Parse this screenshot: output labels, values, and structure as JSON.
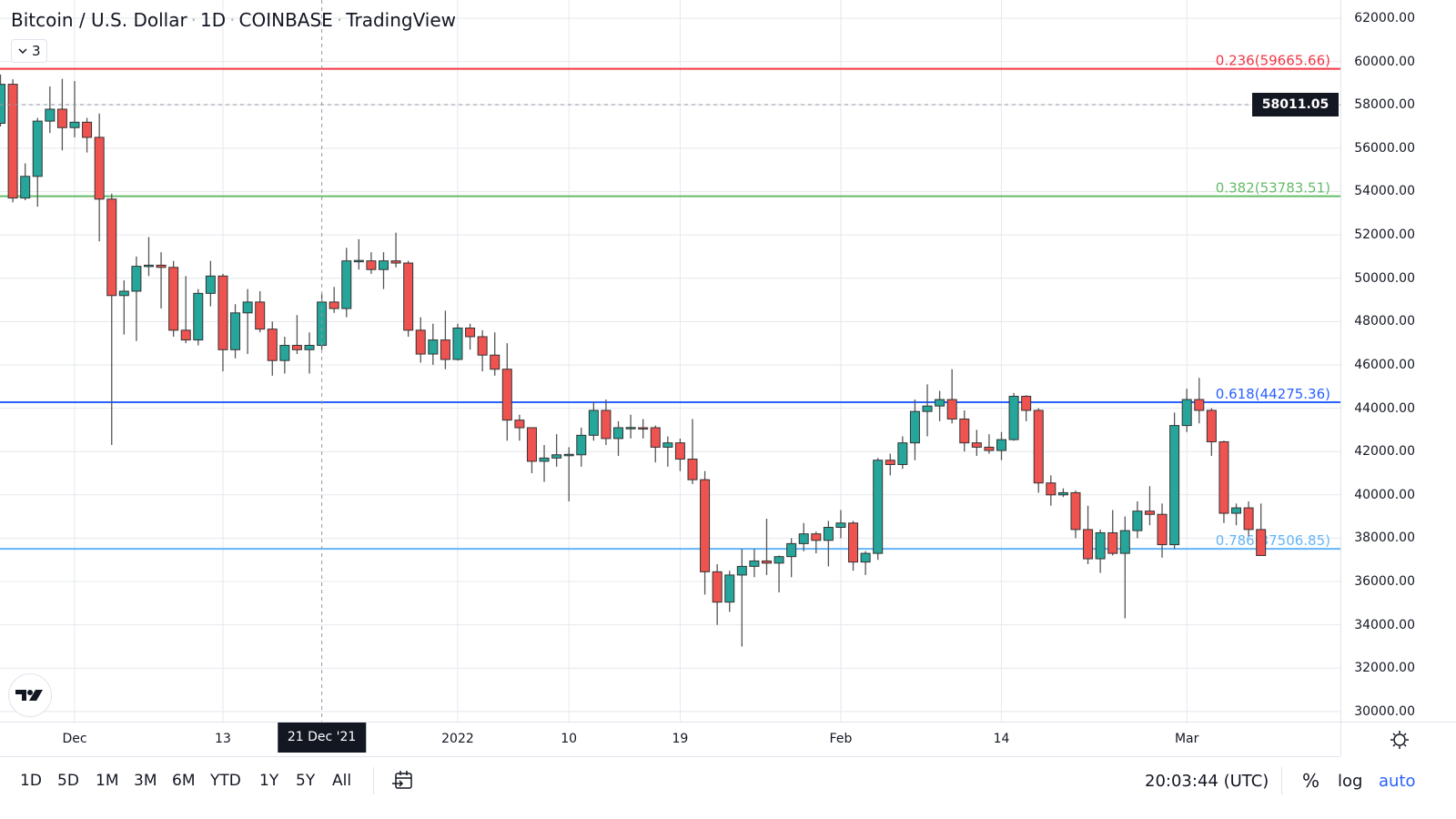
{
  "header": {
    "symbol": "Bitcoin / U.S. Dollar",
    "interval": "1D",
    "exchange": "COINBASE",
    "source": "TradingView",
    "separator": "·",
    "indicator_count": "3"
  },
  "current_price": "58011.05",
  "crosshair_date": "21 Dec '21",
  "bottom": {
    "ranges": [
      "1D",
      "5D",
      "1M",
      "3M",
      "6M",
      "YTD",
      "1Y",
      "5Y",
      "All"
    ],
    "clock": "20:03:44 (UTC)",
    "percent": "%",
    "log": "log",
    "auto": "auto"
  },
  "colors": {
    "up": "#26a69a",
    "down": "#ef5350",
    "accent": "#2962ff"
  },
  "chart_data": {
    "type": "candlestick",
    "title": "Bitcoin / U.S. Dollar · 1D · COINBASE",
    "ylim": [
      29500,
      62800
    ],
    "grid": true,
    "price_ticks": [
      "62000.00",
      "60000.00",
      "58000.00",
      "56000.00",
      "54000.00",
      "52000.00",
      "50000.00",
      "48000.00",
      "46000.00",
      "44000.00",
      "42000.00",
      "40000.00",
      "38000.00",
      "36000.00",
      "34000.00",
      "32000.00",
      "30000.00"
    ],
    "time_ticks": [
      {
        "date": "2021-12-01",
        "label": "Dec"
      },
      {
        "date": "2021-12-13",
        "label": "13"
      },
      {
        "date": "2022-01-01",
        "label": "2022"
      },
      {
        "date": "2022-01-10",
        "label": "10"
      },
      {
        "date": "2022-01-19",
        "label": "19"
      },
      {
        "date": "2022-02-01",
        "label": "Feb"
      },
      {
        "date": "2022-02-14",
        "label": "14"
      },
      {
        "date": "2022-03-01",
        "label": "Mar"
      }
    ],
    "crosshair": {
      "date": "2021-12-21",
      "price": 58011.05
    },
    "fib_levels": [
      {
        "ratio": "0.236",
        "price": 59665.66,
        "label": "0.236(59665.66)",
        "color": "#f23645"
      },
      {
        "ratio": "0.382",
        "price": 53783.51,
        "label": "0.382(53783.51)",
        "color": "#66bb6a"
      },
      {
        "ratio": "0.618",
        "price": 44275.36,
        "label": "0.618(44275.36)",
        "color": "#2962ff"
      },
      {
        "ratio": "0.786",
        "price": 37506.85,
        "label": "0.786(37506.85)",
        "color": "#64b5f6"
      }
    ],
    "columns": [
      "date",
      "open",
      "high",
      "low",
      "close"
    ],
    "candles": [
      [
        "2021-11-25",
        57150,
        59400,
        57000,
        58950
      ],
      [
        "2021-11-26",
        58950,
        59180,
        53500,
        53700
      ],
      [
        "2021-11-27",
        53700,
        55300,
        53600,
        54700
      ],
      [
        "2021-11-28",
        54700,
        57400,
        53300,
        57250
      ],
      [
        "2021-11-29",
        57250,
        58850,
        56700,
        57800
      ],
      [
        "2021-11-30",
        57800,
        59200,
        55900,
        56950
      ],
      [
        "2021-12-01",
        56950,
        59100,
        56500,
        57200
      ],
      [
        "2021-12-02",
        57200,
        57400,
        55800,
        56500
      ],
      [
        "2021-12-03",
        56500,
        57600,
        51700,
        53650
      ],
      [
        "2021-12-04",
        53650,
        53900,
        42300,
        49200
      ],
      [
        "2021-12-05",
        49200,
        49900,
        47400,
        49400
      ],
      [
        "2021-12-06",
        49400,
        51000,
        47100,
        50550
      ],
      [
        "2021-12-07",
        50550,
        51900,
        50100,
        50600
      ],
      [
        "2021-12-08",
        50600,
        51200,
        48600,
        50500
      ],
      [
        "2021-12-09",
        50500,
        50800,
        47300,
        47600
      ],
      [
        "2021-12-10",
        47600,
        50100,
        47000,
        47150
      ],
      [
        "2021-12-11",
        47150,
        49500,
        46900,
        49300
      ],
      [
        "2021-12-12",
        49300,
        50800,
        48700,
        50100
      ],
      [
        "2021-12-13",
        50100,
        50200,
        45700,
        46700
      ],
      [
        "2021-12-14",
        46700,
        48800,
        46300,
        48400
      ],
      [
        "2021-12-15",
        48400,
        49500,
        46500,
        48900
      ],
      [
        "2021-12-16",
        48900,
        49400,
        47500,
        47650
      ],
      [
        "2021-12-17",
        47650,
        48000,
        45500,
        46200
      ],
      [
        "2021-12-18",
        46200,
        47300,
        45600,
        46900
      ],
      [
        "2021-12-19",
        46900,
        48300,
        46500,
        46700
      ],
      [
        "2021-12-20",
        46700,
        47500,
        45600,
        46900
      ],
      [
        "2021-12-21",
        46900,
        49300,
        46700,
        48900
      ],
      [
        "2021-12-22",
        48900,
        49600,
        48400,
        48600
      ],
      [
        "2021-12-23",
        48600,
        51400,
        48200,
        50800
      ],
      [
        "2021-12-24",
        50800,
        51800,
        50400,
        50820
      ],
      [
        "2021-12-25",
        50800,
        51200,
        50200,
        50400
      ],
      [
        "2021-12-26",
        50400,
        51200,
        49500,
        50800
      ],
      [
        "2021-12-27",
        50800,
        52100,
        50500,
        50700
      ],
      [
        "2021-12-28",
        50700,
        50800,
        47300,
        47600
      ],
      [
        "2021-12-29",
        47600,
        48200,
        46100,
        46500
      ],
      [
        "2021-12-30",
        46500,
        47900,
        46000,
        47150
      ],
      [
        "2021-12-31",
        47150,
        48500,
        45800,
        46250
      ],
      [
        "2022-01-01",
        46250,
        47900,
        46200,
        47700
      ],
      [
        "2022-01-02",
        47700,
        47900,
        46700,
        47300
      ],
      [
        "2022-01-03",
        47300,
        47600,
        45700,
        46450
      ],
      [
        "2022-01-04",
        46450,
        47500,
        45500,
        45800
      ],
      [
        "2022-01-05",
        45800,
        47000,
        42500,
        43450
      ],
      [
        "2022-01-06",
        43450,
        43700,
        42500,
        43100
      ],
      [
        "2022-01-07",
        43100,
        43100,
        41000,
        41550
      ],
      [
        "2022-01-08",
        41550,
        42300,
        40600,
        41700
      ],
      [
        "2022-01-09",
        41700,
        42800,
        41300,
        41850
      ],
      [
        "2022-01-10",
        41850,
        42200,
        39700,
        41870
      ],
      [
        "2022-01-11",
        41850,
        43100,
        41300,
        42750
      ],
      [
        "2022-01-12",
        42750,
        44300,
        42500,
        43900
      ],
      [
        "2022-01-13",
        43900,
        44400,
        42300,
        42600
      ],
      [
        "2022-01-14",
        42600,
        43400,
        41800,
        43100
      ],
      [
        "2022-01-15",
        43100,
        43700,
        42600,
        43110
      ],
      [
        "2022-01-16",
        43100,
        43500,
        42600,
        43090
      ],
      [
        "2022-01-17",
        43100,
        43200,
        41500,
        42200
      ],
      [
        "2022-01-18",
        42200,
        42700,
        41300,
        42400
      ],
      [
        "2022-01-19",
        42400,
        42600,
        41100,
        41650
      ],
      [
        "2022-01-20",
        41650,
        43500,
        40500,
        40700
      ],
      [
        "2022-01-21",
        40700,
        41100,
        35400,
        36450
      ],
      [
        "2022-01-22",
        36450,
        36800,
        34000,
        35050
      ],
      [
        "2022-01-23",
        35050,
        36500,
        34600,
        36300
      ],
      [
        "2022-01-24",
        36300,
        37500,
        33000,
        36700
      ],
      [
        "2022-01-25",
        36700,
        37500,
        36200,
        36950
      ],
      [
        "2022-01-26",
        36950,
        38900,
        36300,
        36850
      ],
      [
        "2022-01-27",
        36850,
        37200,
        35500,
        37150
      ],
      [
        "2022-01-28",
        37150,
        38000,
        36200,
        37750
      ],
      [
        "2022-01-29",
        37750,
        38700,
        37400,
        38200
      ],
      [
        "2022-01-30",
        38200,
        38300,
        37300,
        37900
      ],
      [
        "2022-01-31",
        37900,
        38800,
        36700,
        38500
      ],
      [
        "2022-02-01",
        38500,
        39300,
        38000,
        38700
      ],
      [
        "2022-02-02",
        38700,
        38800,
        36500,
        36900
      ],
      [
        "2022-02-03",
        36900,
        37400,
        36300,
        37300
      ],
      [
        "2022-02-04",
        37300,
        41700,
        37000,
        41600
      ],
      [
        "2022-02-05",
        41600,
        41900,
        40900,
        41400
      ],
      [
        "2022-02-06",
        41400,
        42700,
        41200,
        42400
      ],
      [
        "2022-02-07",
        42400,
        44400,
        41600,
        43850
      ],
      [
        "2022-02-08",
        43850,
        45100,
        42700,
        44100
      ],
      [
        "2022-02-09",
        44100,
        44800,
        43400,
        44400
      ],
      [
        "2022-02-10",
        44400,
        45800,
        43300,
        43500
      ],
      [
        "2022-02-11",
        43500,
        43900,
        42000,
        42400
      ],
      [
        "2022-02-12",
        42400,
        43000,
        41800,
        42200
      ],
      [
        "2022-02-13",
        42200,
        42800,
        41900,
        42050
      ],
      [
        "2022-02-14",
        42050,
        42900,
        41600,
        42550
      ],
      [
        "2022-02-15",
        42550,
        44700,
        42500,
        44550
      ],
      [
        "2022-02-16",
        44550,
        44600,
        43400,
        43900
      ],
      [
        "2022-02-17",
        43900,
        44000,
        40100,
        40550
      ],
      [
        "2022-02-18",
        40550,
        40900,
        39500,
        40000
      ],
      [
        "2022-02-19",
        40000,
        40300,
        39900,
        40100
      ],
      [
        "2022-02-20",
        40100,
        40200,
        38000,
        38400
      ],
      [
        "2022-02-21",
        38400,
        39500,
        36800,
        37050
      ],
      [
        "2022-02-22",
        37050,
        38400,
        36400,
        38250
      ],
      [
        "2022-02-23",
        38250,
        39300,
        37200,
        37300
      ],
      [
        "2022-02-24",
        37300,
        39000,
        34300,
        38350
      ],
      [
        "2022-02-25",
        38350,
        39700,
        38000,
        39250
      ],
      [
        "2022-02-26",
        39250,
        40400,
        38600,
        39100
      ],
      [
        "2022-02-27",
        39100,
        39600,
        37100,
        37700
      ],
      [
        "2022-02-28",
        37700,
        43800,
        37500,
        43200
      ],
      [
        "2022-03-01",
        43200,
        44900,
        42900,
        44400
      ],
      [
        "2022-03-02",
        44400,
        45400,
        43300,
        43900
      ],
      [
        "2022-03-03",
        43900,
        44000,
        41800,
        42450
      ],
      [
        "2022-03-04",
        42450,
        42500,
        38700,
        39150
      ],
      [
        "2022-03-05",
        39150,
        39600,
        38600,
        39400
      ],
      [
        "2022-03-06",
        39400,
        39700,
        38100,
        38400
      ],
      [
        "2022-03-07",
        38400,
        39600,
        37200,
        37200
      ]
    ]
  }
}
